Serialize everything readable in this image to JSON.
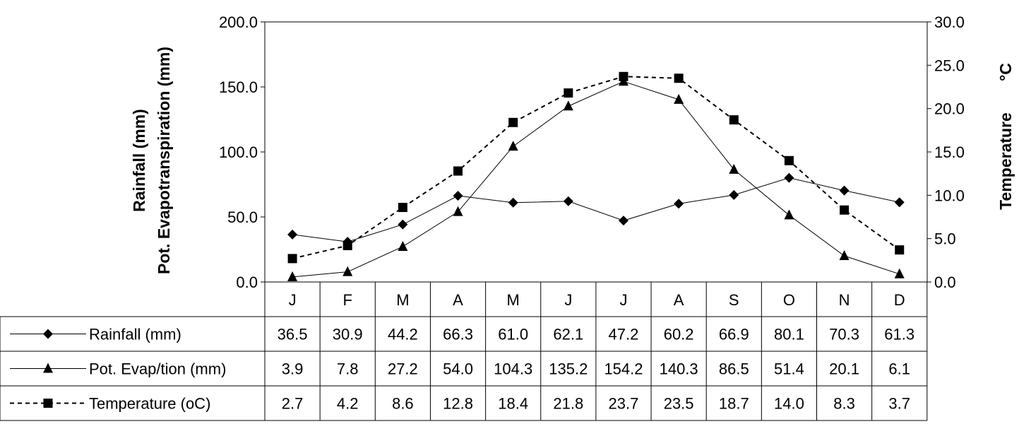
{
  "chart_data": {
    "type": "line",
    "categories": [
      "J",
      "F",
      "M",
      "A",
      "M",
      "J",
      "J",
      "A",
      "S",
      "O",
      "N",
      "D"
    ],
    "y_left": {
      "label_line1": "Rainfall (mm)",
      "label_line2": "Pot. Evapotranspiration  (mm)",
      "ylim": [
        0,
        200
      ],
      "ticks": [
        "0.0",
        "50.0",
        "100.0",
        "150.0",
        "200.0"
      ]
    },
    "y_right": {
      "label_unit": "°C",
      "label": "Temperature",
      "ylim": [
        0,
        30
      ],
      "ticks": [
        "0.0",
        "5.0",
        "10.0",
        "15.0",
        "20.0",
        "25.0",
        "30.0"
      ]
    },
    "grid": false,
    "legend": "data-table",
    "series": [
      {
        "name": "Rainfall (mm)",
        "axis": "left",
        "marker": "diamond",
        "line": "solid",
        "values": [
          36.5,
          30.9,
          44.2,
          66.3,
          61.0,
          62.1,
          47.2,
          60.2,
          66.9,
          80.1,
          70.3,
          61.3
        ],
        "labels": [
          "36.5",
          "30.9",
          "44.2",
          "66.3",
          "61.0",
          "62.1",
          "47.2",
          "60.2",
          "66.9",
          "80.1",
          "70.3",
          "61.3"
        ]
      },
      {
        "name": "Pot. Evap/tion (mm)",
        "axis": "left",
        "marker": "triangle",
        "line": "solid",
        "values": [
          3.9,
          7.8,
          27.2,
          54.0,
          104.3,
          135.2,
          154.2,
          140.3,
          86.5,
          51.4,
          20.1,
          6.1
        ],
        "labels": [
          "3.9",
          "7.8",
          "27.2",
          "54.0",
          "104.3",
          "135.2",
          "154.2",
          "140.3",
          "86.5",
          "51.4",
          "20.1",
          "6.1"
        ]
      },
      {
        "name": "Temperature (oC)",
        "axis": "right",
        "marker": "square",
        "line": "dashed",
        "values": [
          2.7,
          4.2,
          8.6,
          12.8,
          18.4,
          21.8,
          23.7,
          23.5,
          18.7,
          14.0,
          8.3,
          3.7
        ],
        "labels": [
          "2.7",
          "4.2",
          "8.6",
          "12.8",
          "18.4",
          "21.8",
          "23.7",
          "23.5",
          "18.7",
          "14.0",
          "8.3",
          "3.7"
        ]
      }
    ]
  }
}
